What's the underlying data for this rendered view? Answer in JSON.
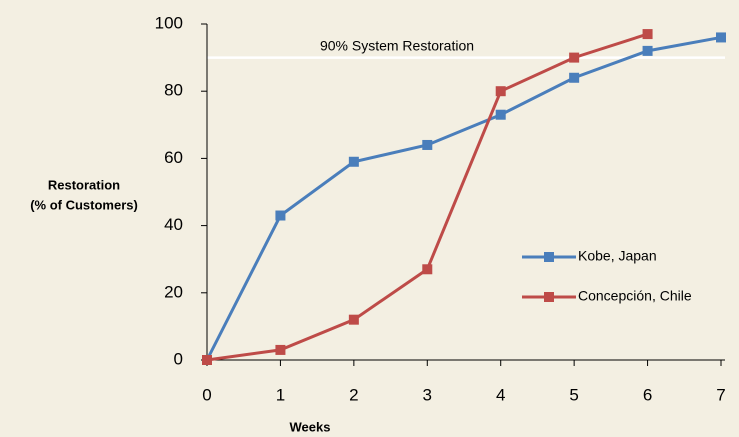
{
  "chart_data": {
    "type": "line",
    "x": [
      0,
      1,
      2,
      3,
      4,
      5,
      6,
      7
    ],
    "series": [
      {
        "name": "Kobe, Japan",
        "color": "#4a7ebb",
        "values": [
          0,
          43,
          59,
          64,
          73,
          84,
          92,
          96
        ]
      },
      {
        "name": "Concepción, Chile",
        "color": "#be4b48",
        "values": [
          0,
          3,
          12,
          27,
          80,
          90,
          97,
          null
        ]
      }
    ],
    "xlim": [
      0,
      7
    ],
    "xticks": [
      0,
      1,
      2,
      3,
      4,
      5,
      6,
      7
    ],
    "ylim": [
      0,
      100
    ],
    "yticks": [
      0,
      20,
      40,
      60,
      80,
      100
    ],
    "x_label": "Weeks",
    "y_label": [
      "Restoration",
      "(% of Customers)"
    ],
    "reference_line": {
      "value": 90,
      "label": "90% System Restoration",
      "color": "#ffffff"
    },
    "legend": "right"
  }
}
